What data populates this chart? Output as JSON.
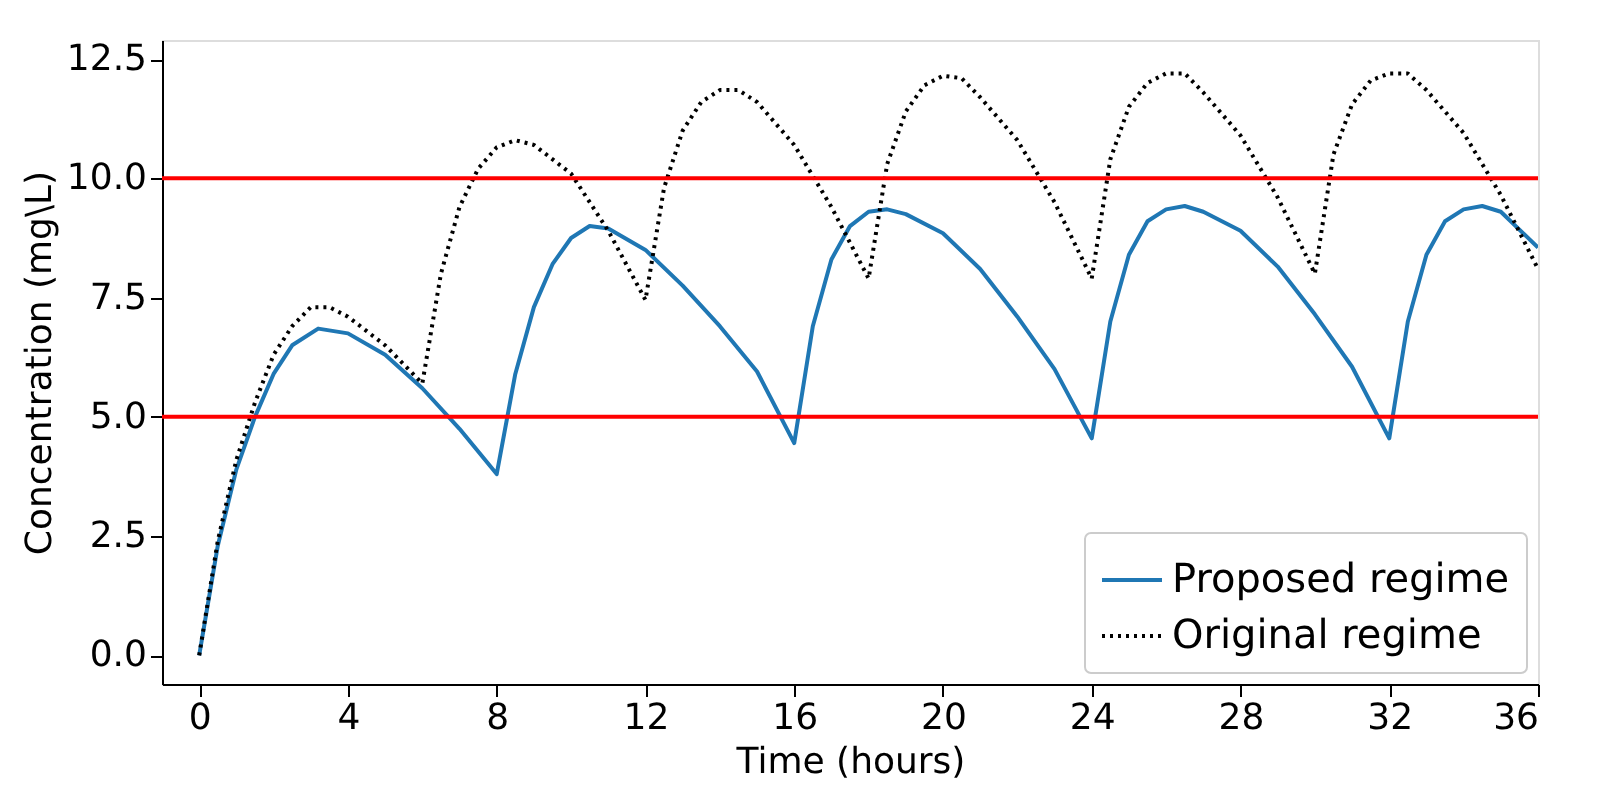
{
  "chart_data": {
    "type": "line",
    "xlabel": "Time (hours)",
    "ylabel": "Concentration (mg\\L)",
    "xlim": [
      -1,
      36
    ],
    "xticks": [
      0,
      4,
      8,
      12,
      16,
      20,
      24,
      28,
      32,
      36
    ],
    "ylim": [
      -0.6,
      12.9
    ],
    "yticks": [
      {
        "value": 0,
        "label": "0.0"
      },
      {
        "value": 2.5,
        "label": "2.5"
      },
      {
        "value": 5,
        "label": "5.0"
      },
      {
        "value": 7.5,
        "label": "7.5"
      },
      {
        "value": 10,
        "label": "10.0"
      },
      {
        "value": 12.5,
        "label": "12.5"
      }
    ],
    "grid": false,
    "legend": "bottom right",
    "ref_lines": [
      {
        "axis": "y",
        "value": 5,
        "color": "#ff0000"
      },
      {
        "axis": "y",
        "value": 10,
        "color": "#ff0000"
      }
    ],
    "series": [
      {
        "name": "Proposed regime",
        "color": "#1f77b4",
        "line_style": "solid",
        "x": [
          0,
          0.5,
          1,
          1.5,
          2,
          2.5,
          3.2,
          4,
          5,
          6,
          7,
          8,
          8.5,
          9,
          9.5,
          10,
          10.5,
          11,
          12,
          13,
          14,
          15,
          16,
          16.5,
          17,
          17.5,
          18,
          18.5,
          19,
          20,
          21,
          22,
          23,
          24,
          24.5,
          25,
          25.5,
          26,
          26.5,
          27,
          28,
          29,
          30,
          31,
          32,
          32.5,
          33,
          33.5,
          34,
          34.5,
          35,
          36
        ],
        "values": [
          0,
          2.3,
          3.9,
          5.0,
          5.9,
          6.5,
          6.85,
          6.75,
          6.3,
          5.6,
          4.75,
          3.8,
          5.9,
          7.3,
          8.2,
          8.75,
          9.0,
          8.95,
          8.5,
          7.75,
          6.9,
          5.95,
          4.45,
          6.9,
          8.3,
          9.0,
          9.3,
          9.35,
          9.25,
          8.85,
          8.1,
          7.1,
          6.0,
          4.55,
          7.0,
          8.4,
          9.1,
          9.35,
          9.42,
          9.3,
          8.9,
          8.15,
          7.15,
          6.05,
          4.55,
          7.0,
          8.4,
          9.1,
          9.35,
          9.42,
          9.3,
          8.55
        ]
      },
      {
        "name": "Original regime",
        "color": "#000000",
        "line_style": "dotted",
        "x": [
          0,
          0.5,
          1,
          1.5,
          2,
          2.5,
          3,
          3.5,
          4,
          5,
          6,
          6.5,
          7,
          7.5,
          8,
          8.5,
          9,
          10,
          11,
          12,
          12.5,
          13,
          13.5,
          14,
          14.5,
          15,
          16,
          17,
          18,
          18.5,
          19,
          19.5,
          20,
          20.5,
          21,
          22,
          23,
          24,
          24.5,
          25,
          25.5,
          26,
          26.5,
          27,
          28,
          29,
          30,
          30.5,
          31,
          31.5,
          32,
          32.5,
          33,
          34,
          35,
          36
        ],
        "values": [
          0,
          2.4,
          4.1,
          5.3,
          6.3,
          6.9,
          7.3,
          7.3,
          7.1,
          6.5,
          5.7,
          8.0,
          9.4,
          10.2,
          10.65,
          10.8,
          10.7,
          10.1,
          8.9,
          7.45,
          9.8,
          11.0,
          11.6,
          11.85,
          11.85,
          11.6,
          10.7,
          9.4,
          7.9,
          10.3,
          11.4,
          11.95,
          12.15,
          12.1,
          11.7,
          10.8,
          9.5,
          7.9,
          10.4,
          11.5,
          12.0,
          12.2,
          12.2,
          11.8,
          10.9,
          9.6,
          8.0,
          10.5,
          11.55,
          12.05,
          12.2,
          12.2,
          11.85,
          10.95,
          9.65,
          8.1
        ]
      }
    ]
  }
}
